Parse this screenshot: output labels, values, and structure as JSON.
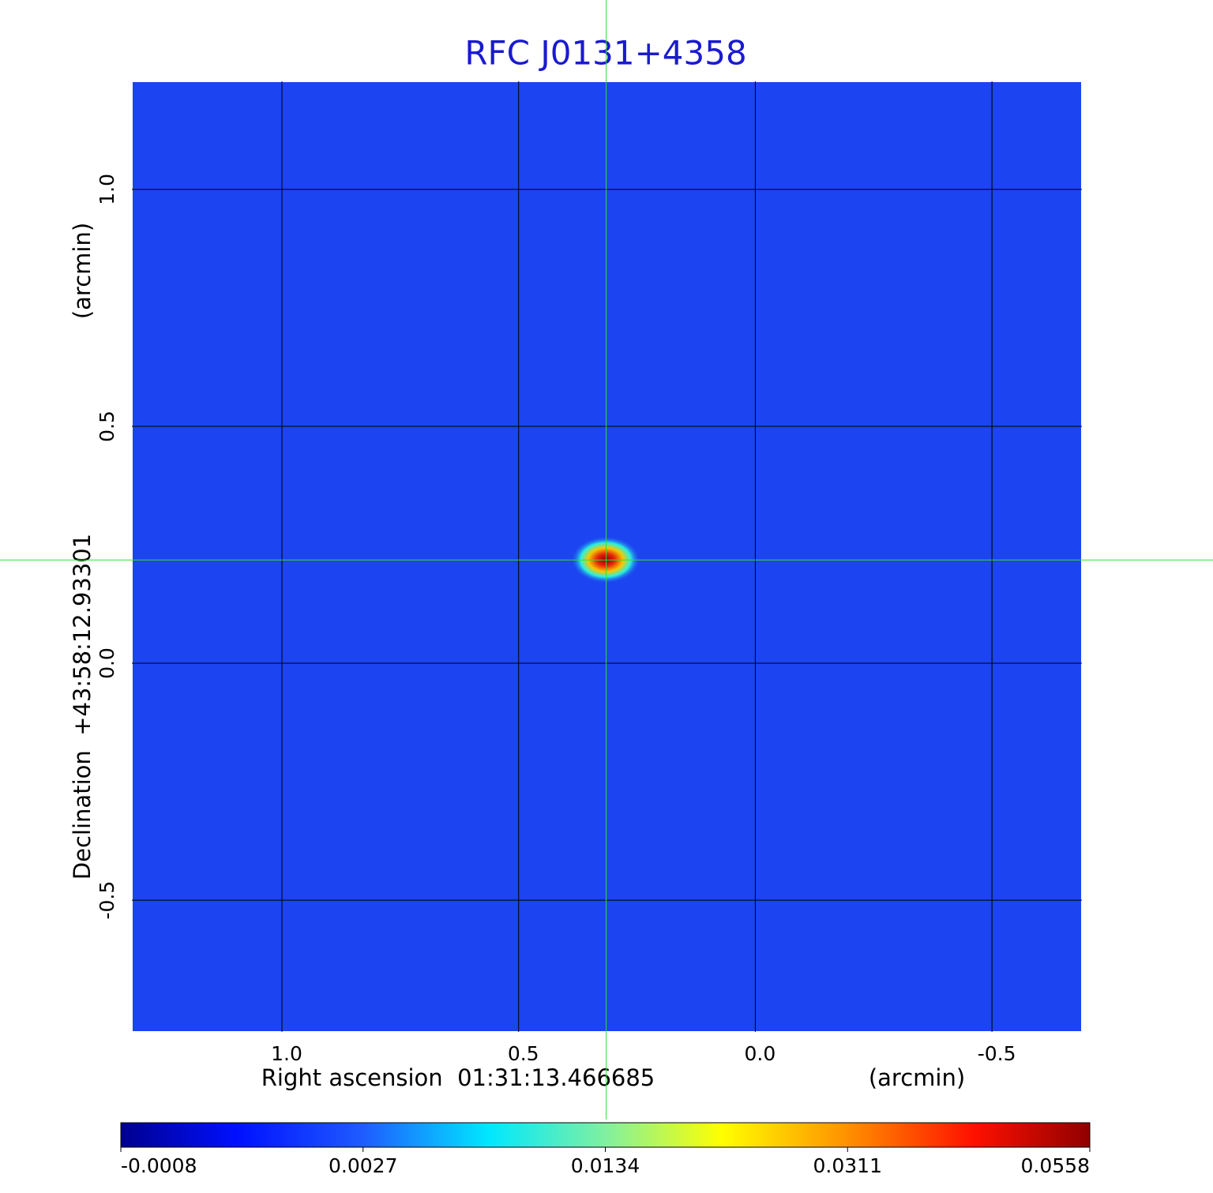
{
  "chart_data": {
    "type": "image",
    "title": "RFC J0131+4358",
    "xlabel": "Right ascension  01:31:13.466685",
    "xunit": "(arcmin)",
    "ylabel": "Declination  +43:58:12.93301",
    "yunit": "(arcmin)",
    "xlim": [
      1.317,
      -0.69
    ],
    "ylim": [
      -0.778,
      1.228
    ],
    "xticks": [
      {
        "value": 1,
        "label": "1.0"
      },
      {
        "value": 0.5,
        "label": "0.5"
      },
      {
        "value": 0,
        "label": "0.0"
      },
      {
        "value": -0.5,
        "label": "-0.5"
      }
    ],
    "yticks": [
      {
        "value": 1,
        "label": "1.0"
      },
      {
        "value": 0.5,
        "label": "0.5"
      },
      {
        "value": 0,
        "label": "0.0"
      },
      {
        "value": -0.5,
        "label": "-0.5"
      }
    ],
    "grid": true,
    "crosshair": [
      0.315,
      0.218
    ],
    "colormap": "jet",
    "colorbar_ticks": [
      -0.0008,
      0.0027,
      0.0134,
      0.0311,
      0.0558
    ]
  }
}
